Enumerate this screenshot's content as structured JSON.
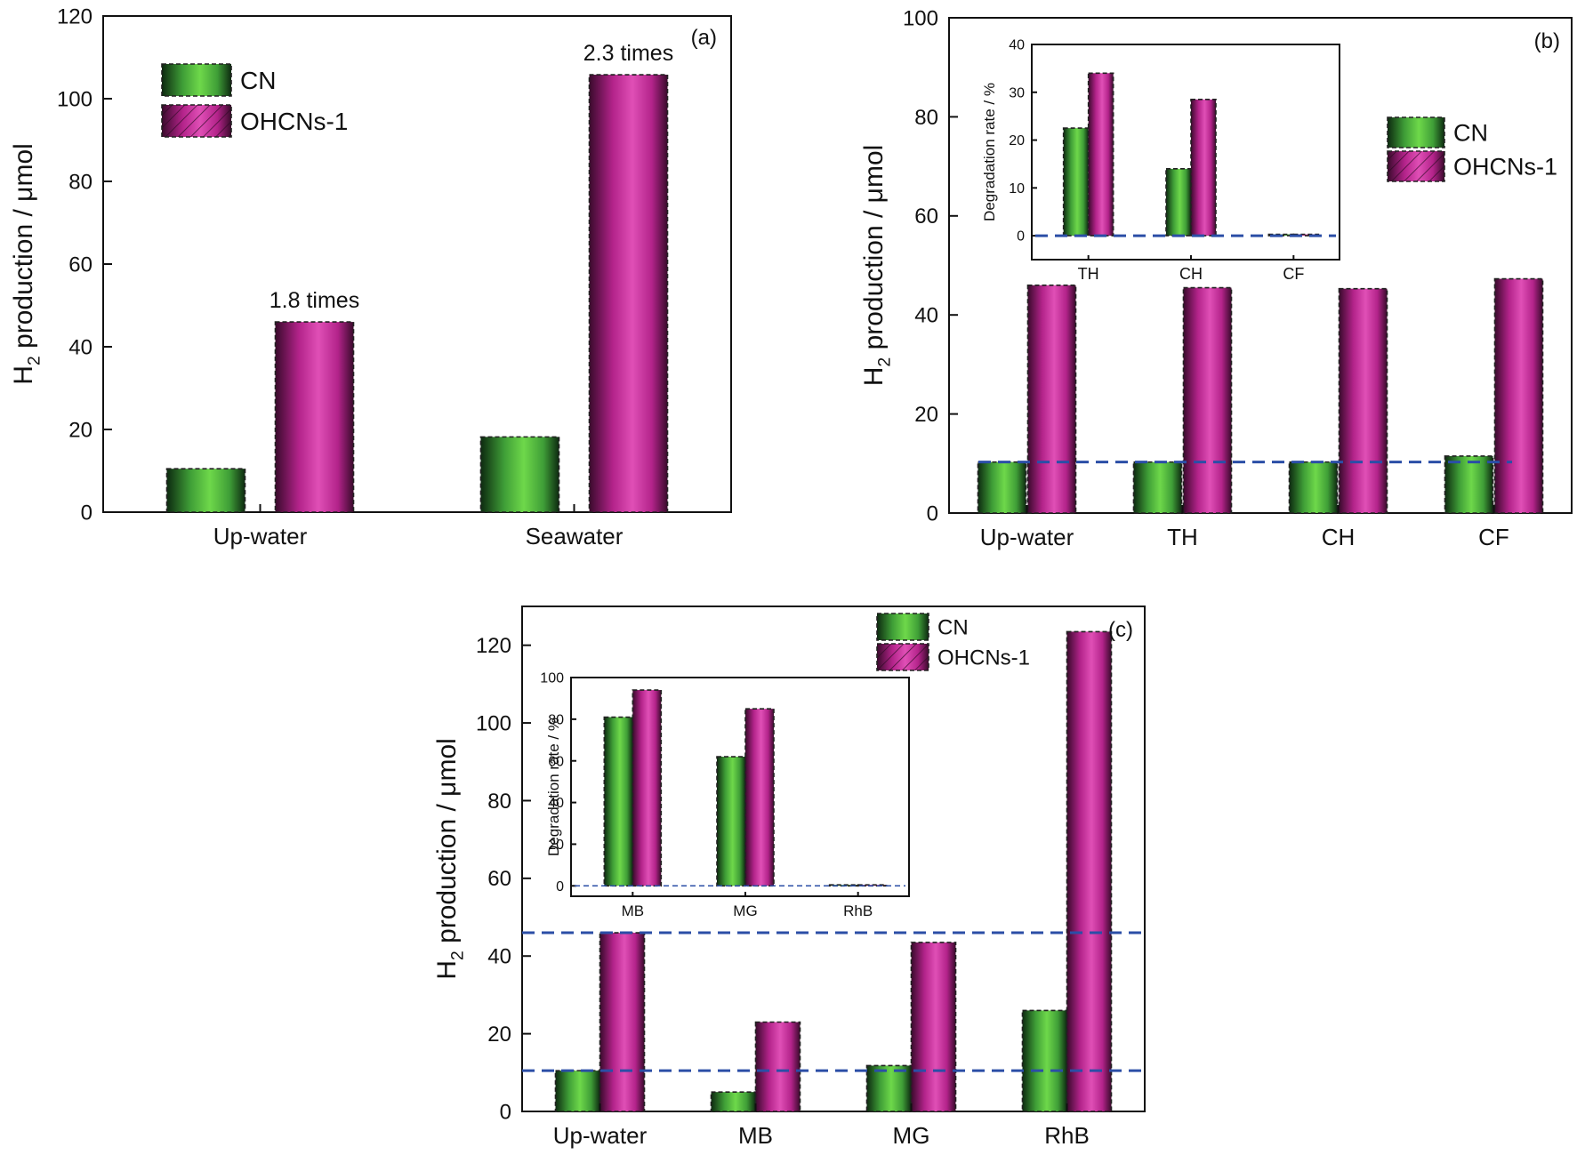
{
  "colors": {
    "cn": "#39b54a",
    "ohcns": "#c7339a",
    "reference": "#2b4ea6"
  },
  "legend": [
    "CN",
    "OHCNs-1"
  ],
  "chart_data": [
    {
      "id": "a",
      "type": "bar",
      "panel_label": "(a)",
      "ylabel_main": "H",
      "ylabel_sub": "2",
      "ylabel_rest": " production / μmol",
      "ylim": [
        0,
        120
      ],
      "yticks": [
        "0",
        "20",
        "40",
        "60",
        "80",
        "100",
        "120"
      ],
      "categories": [
        "Up-water",
        "Seawater"
      ],
      "series": [
        {
          "name": "CN",
          "values": [
            10.5,
            18.2
          ]
        },
        {
          "name": "OHCNs-1",
          "values": [
            46.0,
            105.8
          ]
        }
      ],
      "annotations": [
        "1.8 times",
        "2.3 times"
      ],
      "legend_position": "top-left",
      "grid": false
    },
    {
      "id": "b",
      "type": "bar",
      "panel_label": "(b)",
      "ylabel_main": "H",
      "ylabel_sub": "2",
      "ylabel_rest": " production / μmol",
      "ylim": [
        0,
        100
      ],
      "yticks": [
        "0",
        "20",
        "40",
        "60",
        "80",
        "100"
      ],
      "categories": [
        "Up-water",
        "TH",
        "CH",
        "CF"
      ],
      "series": [
        {
          "name": "CN",
          "values": [
            10.3,
            10.3,
            10.3,
            11.5
          ]
        },
        {
          "name": "OHCNs-1",
          "values": [
            46.0,
            45.5,
            45.3,
            47.3
          ]
        }
      ],
      "reference_line": 10.3,
      "legend_position": "right",
      "grid": false,
      "inset": {
        "type": "bar",
        "ylabel": "Degradation rate / %",
        "ylim": [
          -5,
          40
        ],
        "yticks": [
          "0",
          "10",
          "20",
          "30",
          "40"
        ],
        "categories": [
          "TH",
          "CH",
          "CF"
        ],
        "series": [
          {
            "name": "CN",
            "values": [
              22.5,
              14.0,
              0.3
            ]
          },
          {
            "name": "OHCNs-1",
            "values": [
              34.0,
              28.5,
              0.3
            ]
          }
        ],
        "reference_line": 0
      }
    },
    {
      "id": "c",
      "type": "bar",
      "panel_label": "(c)",
      "ylabel_main": "H",
      "ylabel_sub": "2",
      "ylabel_rest": " production / μmol",
      "ylim": [
        0,
        130
      ],
      "yticks": [
        "0",
        "20",
        "40",
        "60",
        "80",
        "100",
        "120"
      ],
      "categories": [
        "Up-water",
        "MB",
        "MG",
        "RhB"
      ],
      "series": [
        {
          "name": "CN",
          "values": [
            10.5,
            5.0,
            11.8,
            26.0
          ]
        },
        {
          "name": "OHCNs-1",
          "values": [
            46.0,
            23.0,
            43.5,
            123.5
          ]
        }
      ],
      "reference_lines": [
        46.0,
        10.5
      ],
      "legend_position": "top-right",
      "grid": false,
      "inset": {
        "type": "bar",
        "ylabel": "Degradation rate / %",
        "ylim": [
          -5,
          100
        ],
        "yticks": [
          "0",
          "20",
          "40",
          "60",
          "80",
          "100"
        ],
        "categories": [
          "MB",
          "MG",
          "RhB"
        ],
        "series": [
          {
            "name": "CN",
            "values": [
              81.0,
              62.0,
              0.5
            ]
          },
          {
            "name": "OHCNs-1",
            "values": [
              94.0,
              85.0,
              0.5
            ]
          }
        ],
        "reference_line": 0
      }
    }
  ]
}
